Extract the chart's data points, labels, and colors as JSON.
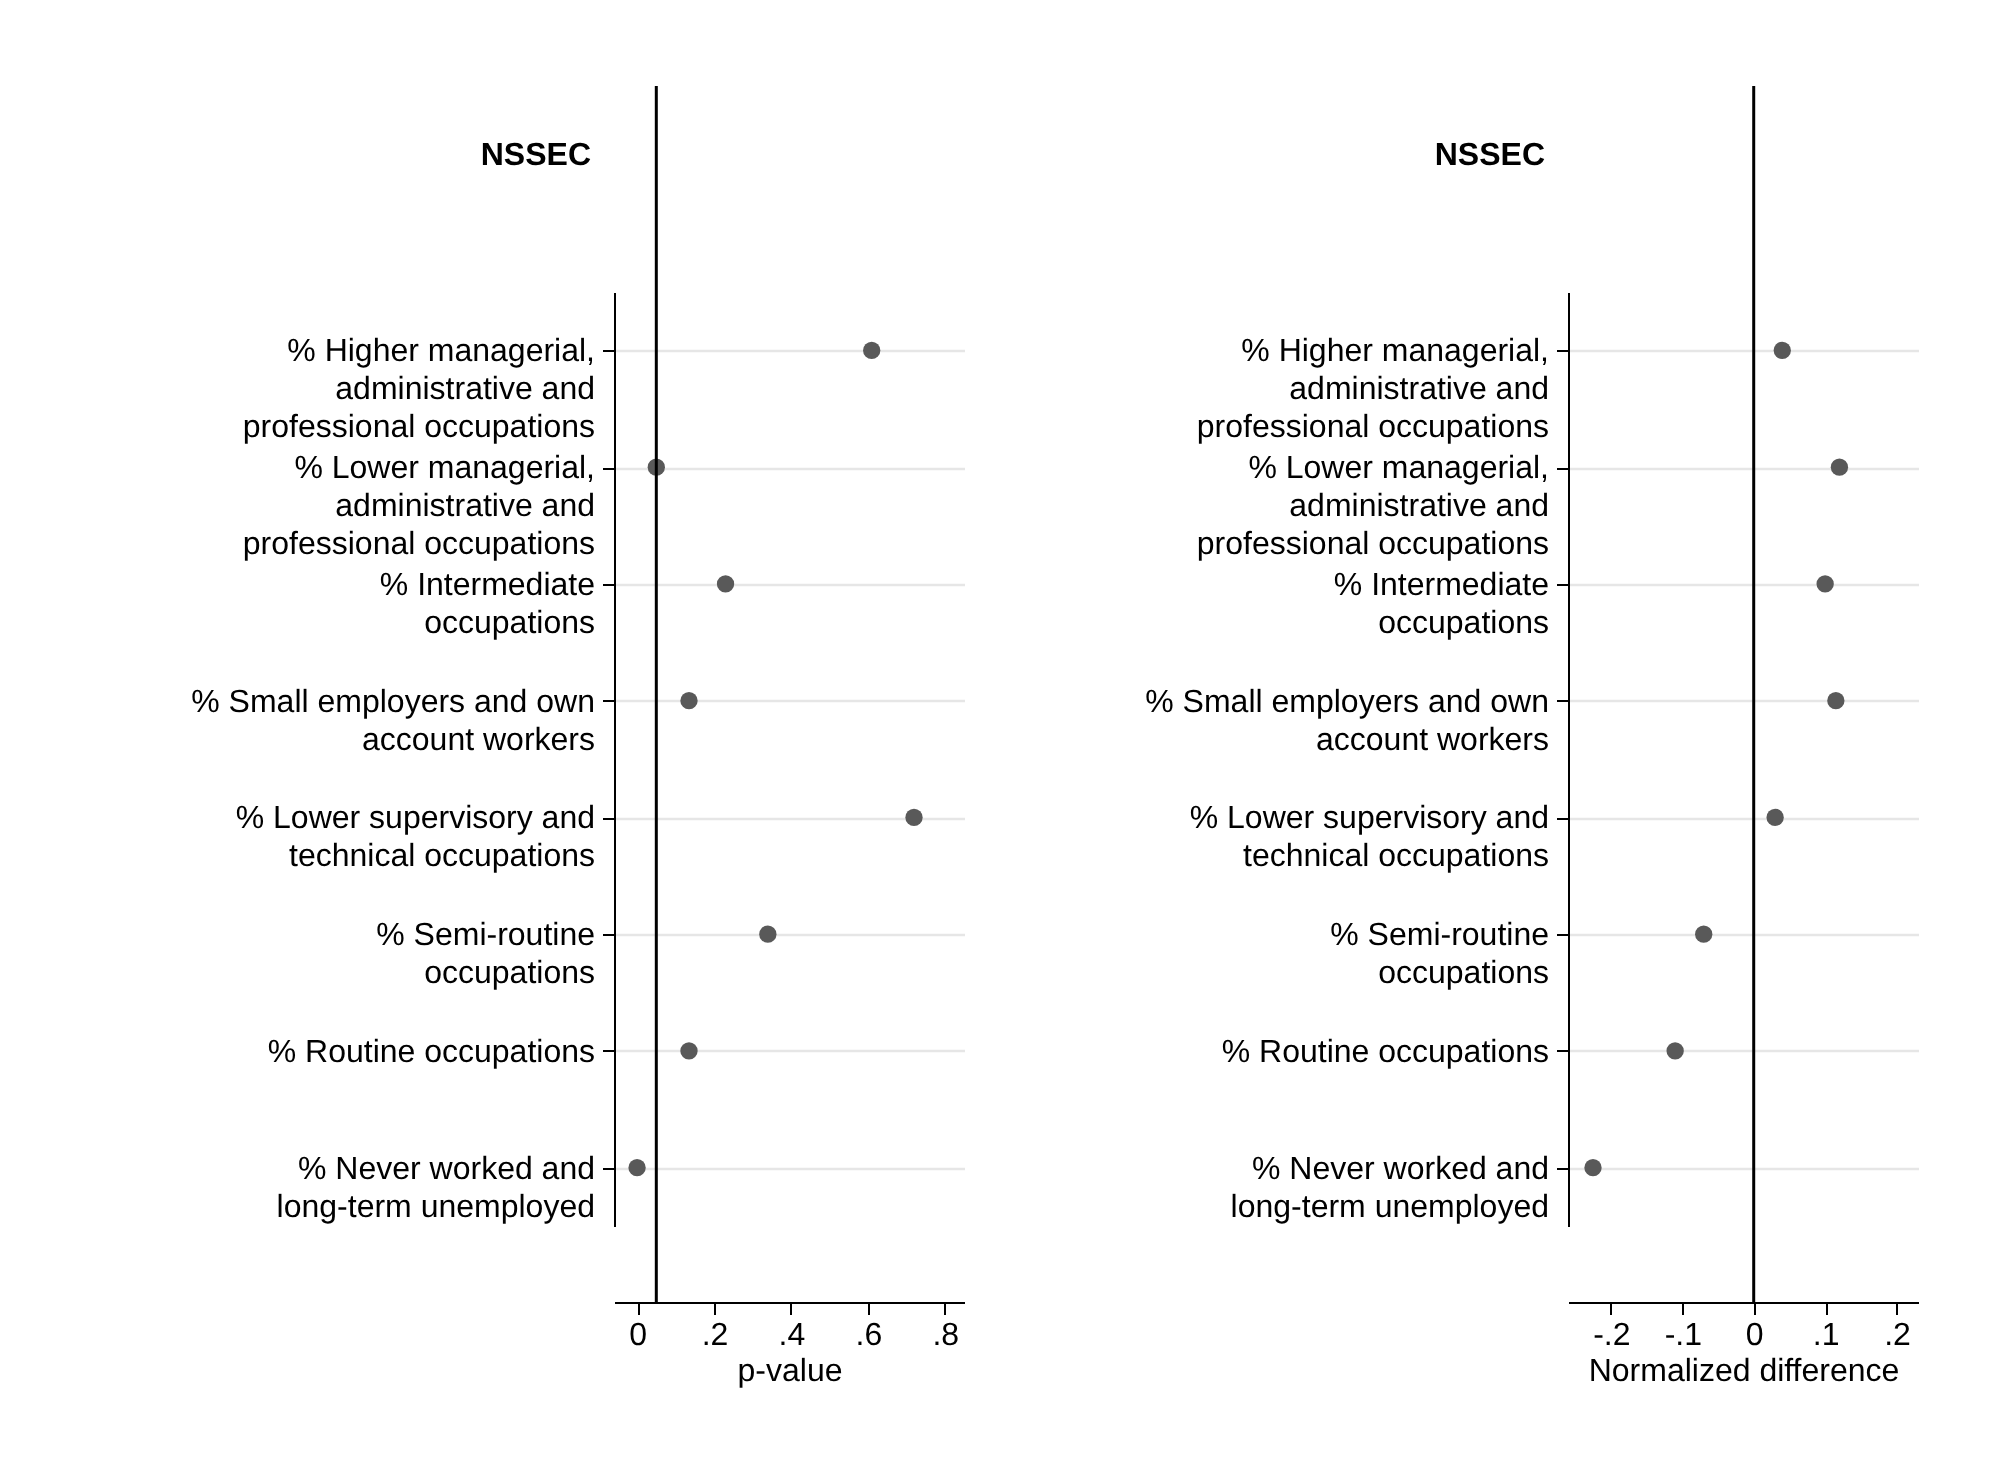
{
  "chart_data": [
    {
      "type": "scatter",
      "ylabel": "NSSEC",
      "xlabel": "p-value",
      "categories": [
        "% Higher managerial,\nadministrative and\nprofessional occupations",
        "% Lower managerial,\nadministrative and\nprofessional occupations",
        "% Intermediate\noccupations",
        "% Small employers and own\naccount workers",
        "% Lower supervisory and\ntechnical occupations",
        "% Semi-routine\noccupations",
        "% Routine occupations",
        "% Never worked and\nlong-term unemployed"
      ],
      "values": [
        0.61,
        0.05,
        0.23,
        0.135,
        0.72,
        0.34,
        0.135,
        0.0
      ],
      "orientation": "horizontal",
      "color": "#595959",
      "marker": "circle",
      "grid": "y",
      "xlim": [
        -0.06,
        0.85
      ],
      "xticks": [
        0,
        {
          "value": 0.2,
          "label": ".2"
        },
        {
          "value": 0.4,
          "label": ".4"
        },
        {
          "value": 0.6,
          "label": ".6"
        },
        {
          "value": 0.8,
          "label": ".8"
        }
      ],
      "ref_lines": [
        {
          "axis": "x",
          "value": 0.05,
          "color": "#000000"
        }
      ]
    },
    {
      "type": "scatter",
      "ylabel": "NSSEC",
      "xlabel": "Normalized difference",
      "categories": [
        "% Higher managerial,\nadministrative and\nprofessional occupations",
        "% Lower managerial,\nadministrative and\nprofessional occupations",
        "% Intermediate\noccupations",
        "% Small employers and own\naccount workers",
        "% Lower supervisory and\ntechnical occupations",
        "% Semi-routine\noccupations",
        "% Routine occupations",
        "% Never worked and\nlong-term unemployed"
      ],
      "values": [
        0.04,
        0.12,
        0.1,
        0.115,
        0.03,
        -0.07,
        -0.11,
        -0.225
      ],
      "orientation": "horizontal",
      "color": "#595959",
      "marker": "circle",
      "grid": "y",
      "xlim": [
        -0.26,
        0.23
      ],
      "xticks": [
        {
          "value": -0.2,
          "label": "-.2"
        },
        {
          "value": -0.1,
          "label": "-.1"
        },
        0,
        {
          "value": 0.1,
          "label": ".1"
        },
        {
          "value": 0.2,
          "label": ".2"
        }
      ],
      "ref_lines": [
        {
          "axis": "x",
          "value": 0,
          "color": "#000000"
        }
      ]
    }
  ]
}
